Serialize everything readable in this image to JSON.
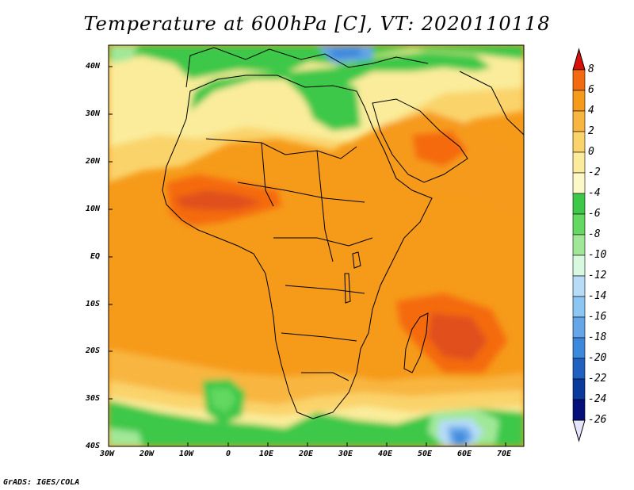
{
  "title": "Temperature at 600hPa [C], VT: 2020110118",
  "credit": "GrADS: IGES/COLA",
  "map": {
    "lat_labels": [
      "40N",
      "30N",
      "20N",
      "10N",
      "EQ",
      "10S",
      "20S",
      "30S",
      "40S"
    ],
    "lon_labels": [
      "30W",
      "20W",
      "10W",
      "0",
      "10E",
      "20E",
      "30E",
      "40E",
      "50E",
      "60E",
      "70E"
    ]
  },
  "colorbar": {
    "levels": [
      "8",
      "6",
      "4",
      "2",
      "0",
      "-2",
      "-4",
      "-6",
      "-8",
      "-10",
      "-12",
      "-14",
      "-16",
      "-18",
      "-20",
      "-22",
      "-24",
      "-26"
    ],
    "colors": [
      "#e02010",
      "#f46a10",
      "#f69a1a",
      "#f8b640",
      "#fad36a",
      "#faec9a",
      "#fcf8c8",
      "#3ec84a",
      "#64d860",
      "#a0e898",
      "#d8f8e0",
      "#b6dcf8",
      "#8cc6f2",
      "#64a6e8",
      "#3c88dc",
      "#2060c0",
      "#0a3a9c",
      "#06107a"
    ],
    "top_color": "#d81008",
    "bottom_color": "#e4e4fc"
  }
}
